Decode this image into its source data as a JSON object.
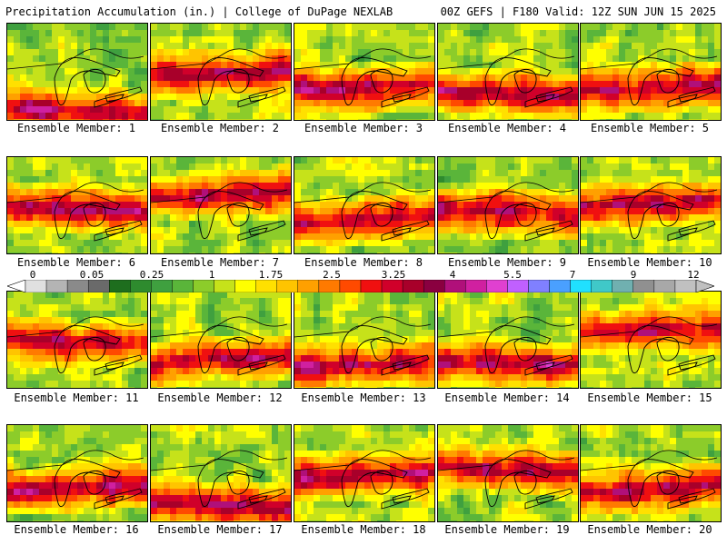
{
  "header": {
    "left": "Precipitation Accumulation (in.) | College of DuPage NEXLAB",
    "right": "00Z GEFS | F180 Valid: 12Z SUN JUN 15 2025"
  },
  "colorbar": {
    "labels": [
      "0",
      "0.05",
      "0.25",
      "1",
      "1.75",
      "2.5",
      "3.25",
      "4",
      "5.5",
      "7",
      "9",
      "12"
    ],
    "colors": [
      "#e0e0e0",
      "#b4b4b4",
      "#8a8a8a",
      "#6a6a6a",
      "#1e6e1e",
      "#2e8b2e",
      "#3fa03f",
      "#5ab53a",
      "#8ccc2a",
      "#c6e21a",
      "#ffff00",
      "#ffe000",
      "#ffc400",
      "#ffa000",
      "#ff7a00",
      "#ff4a00",
      "#f01010",
      "#d0002a",
      "#a8002a",
      "#8a0040",
      "#b0107a",
      "#d020a0",
      "#e040d0",
      "#c060ff",
      "#8080ff",
      "#4aa0ff",
      "#20e0ff",
      "#40c8c8",
      "#70b0b0",
      "#909090",
      "#a8a8a8",
      "#c0c0c0"
    ]
  },
  "panels": [
    {
      "caption": "Ensemble Member: 1"
    },
    {
      "caption": "Ensemble Member: 2"
    },
    {
      "caption": "Ensemble Member: 3"
    },
    {
      "caption": "Ensemble Member: 4"
    },
    {
      "caption": "Ensemble Member: 5"
    },
    {
      "caption": "Ensemble Member: 6"
    },
    {
      "caption": "Ensemble Member: 7"
    },
    {
      "caption": "Ensemble Member: 8"
    },
    {
      "caption": "Ensemble Member: 9"
    },
    {
      "caption": "Ensemble Member: 10"
    },
    {
      "caption": "Ensemble Member: 11"
    },
    {
      "caption": "Ensemble Member: 12"
    },
    {
      "caption": "Ensemble Member: 13"
    },
    {
      "caption": "Ensemble Member: 14"
    },
    {
      "caption": "Ensemble Member: 15"
    },
    {
      "caption": "Ensemble Member: 16"
    },
    {
      "caption": "Ensemble Member: 17"
    },
    {
      "caption": "Ensemble Member: 18"
    },
    {
      "caption": "Ensemble Member: 19"
    },
    {
      "caption": "Ensemble Member: 20"
    }
  ]
}
